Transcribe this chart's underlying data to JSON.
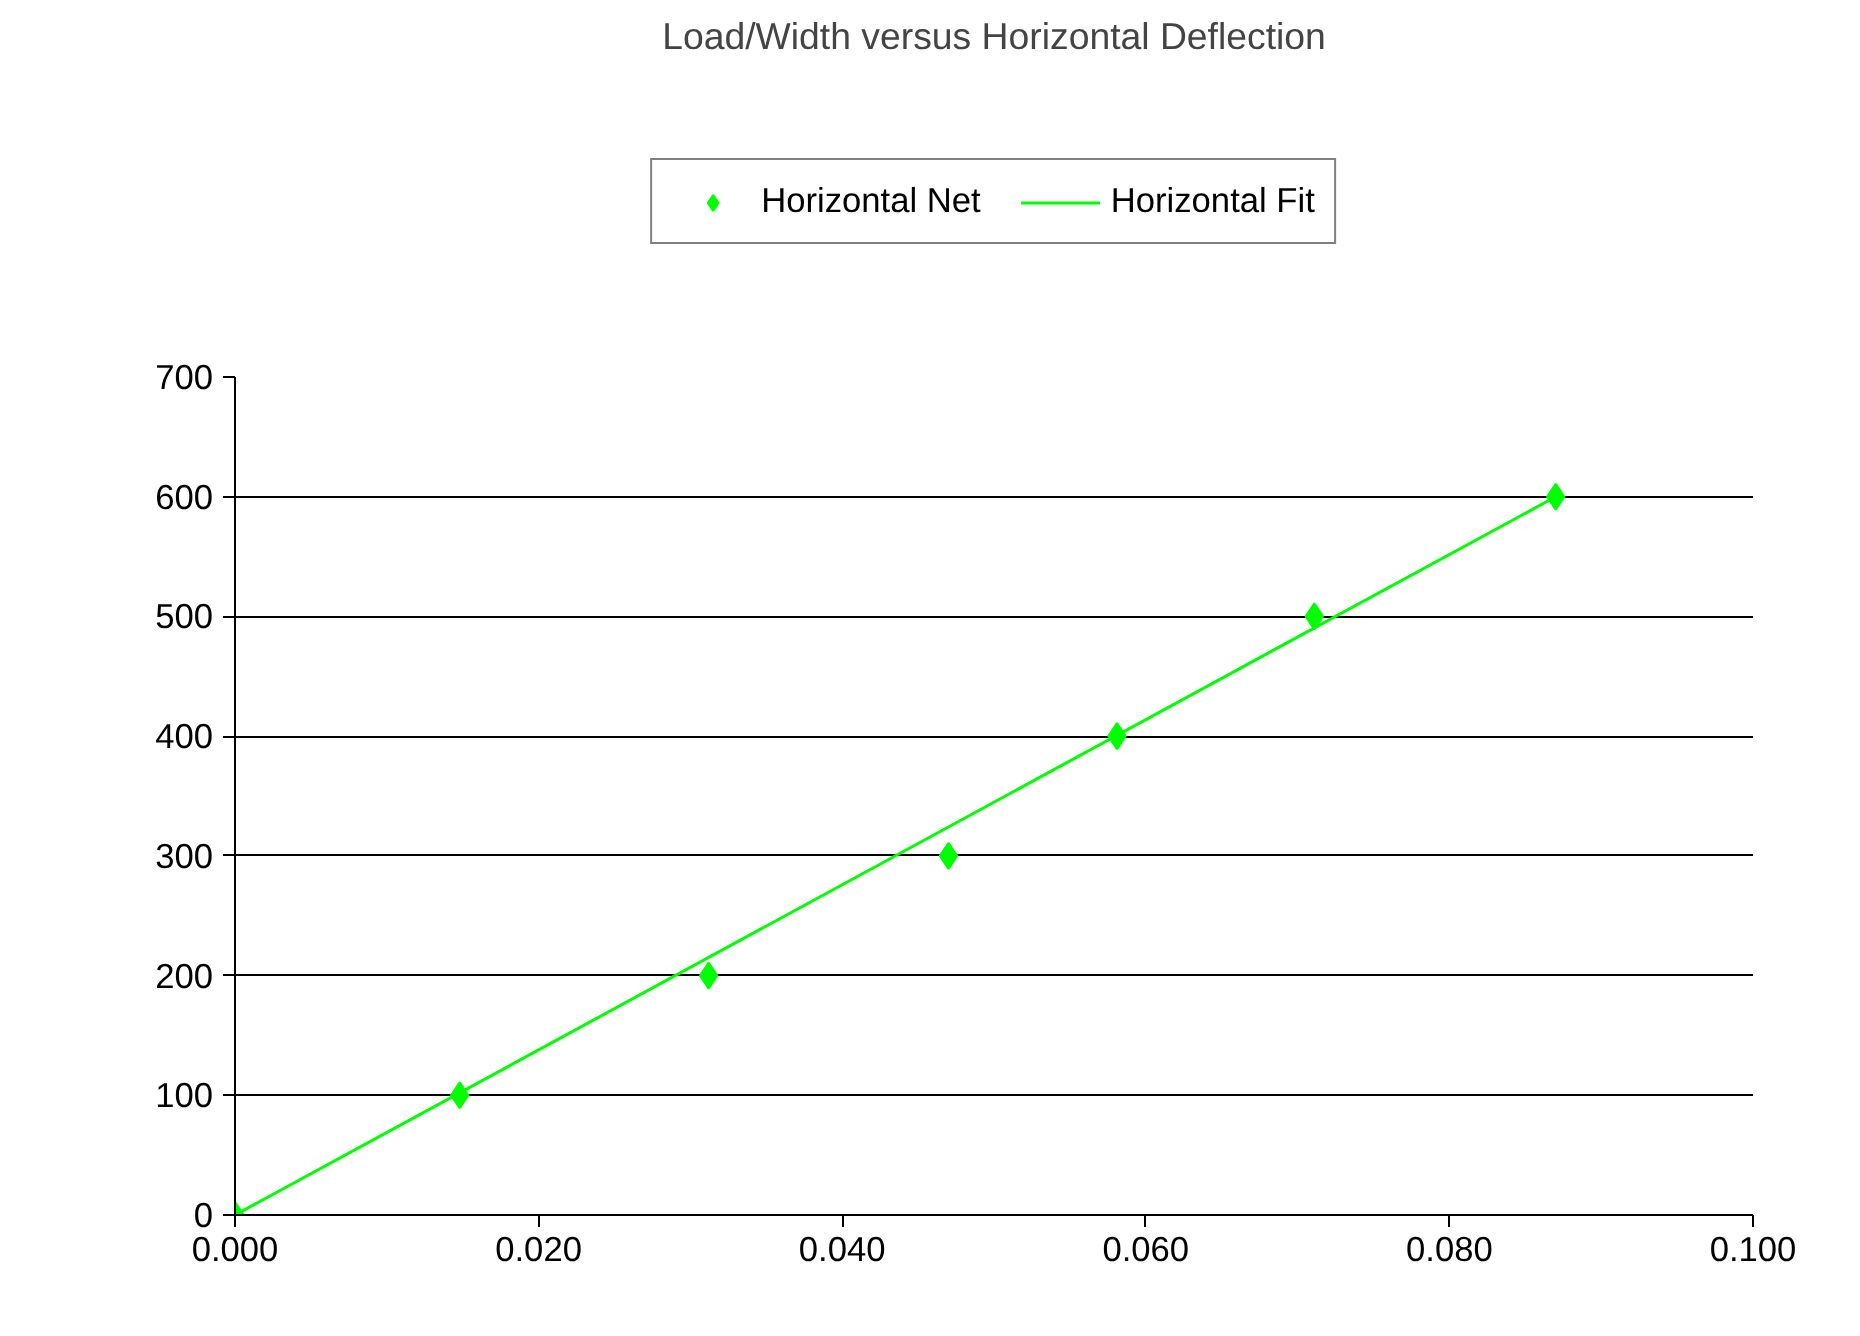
{
  "chart_data": {
    "type": "scatter",
    "title": "Load/Width versus Horizontal Deflection",
    "series": [
      {
        "name": "Horizontal Net",
        "type": "scatter",
        "color": "#00ff00",
        "marker": "diamond",
        "x": [
          0.0,
          0.0148,
          0.0312,
          0.047,
          0.0581,
          0.0711,
          0.087
        ],
        "values": [
          0,
          100,
          200,
          300,
          400,
          500,
          600
        ]
      },
      {
        "name": "Horizontal Fit",
        "type": "line",
        "color": "#00ff00",
        "marker": "none",
        "line_style": "solid",
        "x": [
          0.0,
          0.087
        ],
        "values": [
          0,
          600
        ]
      }
    ],
    "xlim": [
      0.0,
      0.1
    ],
    "xticks": [
      {
        "value": 0.0,
        "label": "0.000"
      },
      {
        "value": 0.02,
        "label": "0.020"
      },
      {
        "value": 0.04,
        "label": "0.040"
      },
      {
        "value": 0.06,
        "label": "0.060"
      },
      {
        "value": 0.08,
        "label": "0.080"
      },
      {
        "value": 0.1,
        "label": "0.100"
      }
    ],
    "ylim": [
      0,
      700
    ],
    "yticks": [
      0,
      100,
      200,
      300,
      400,
      500,
      600,
      700
    ],
    "grid": "y",
    "legend": "top"
  }
}
